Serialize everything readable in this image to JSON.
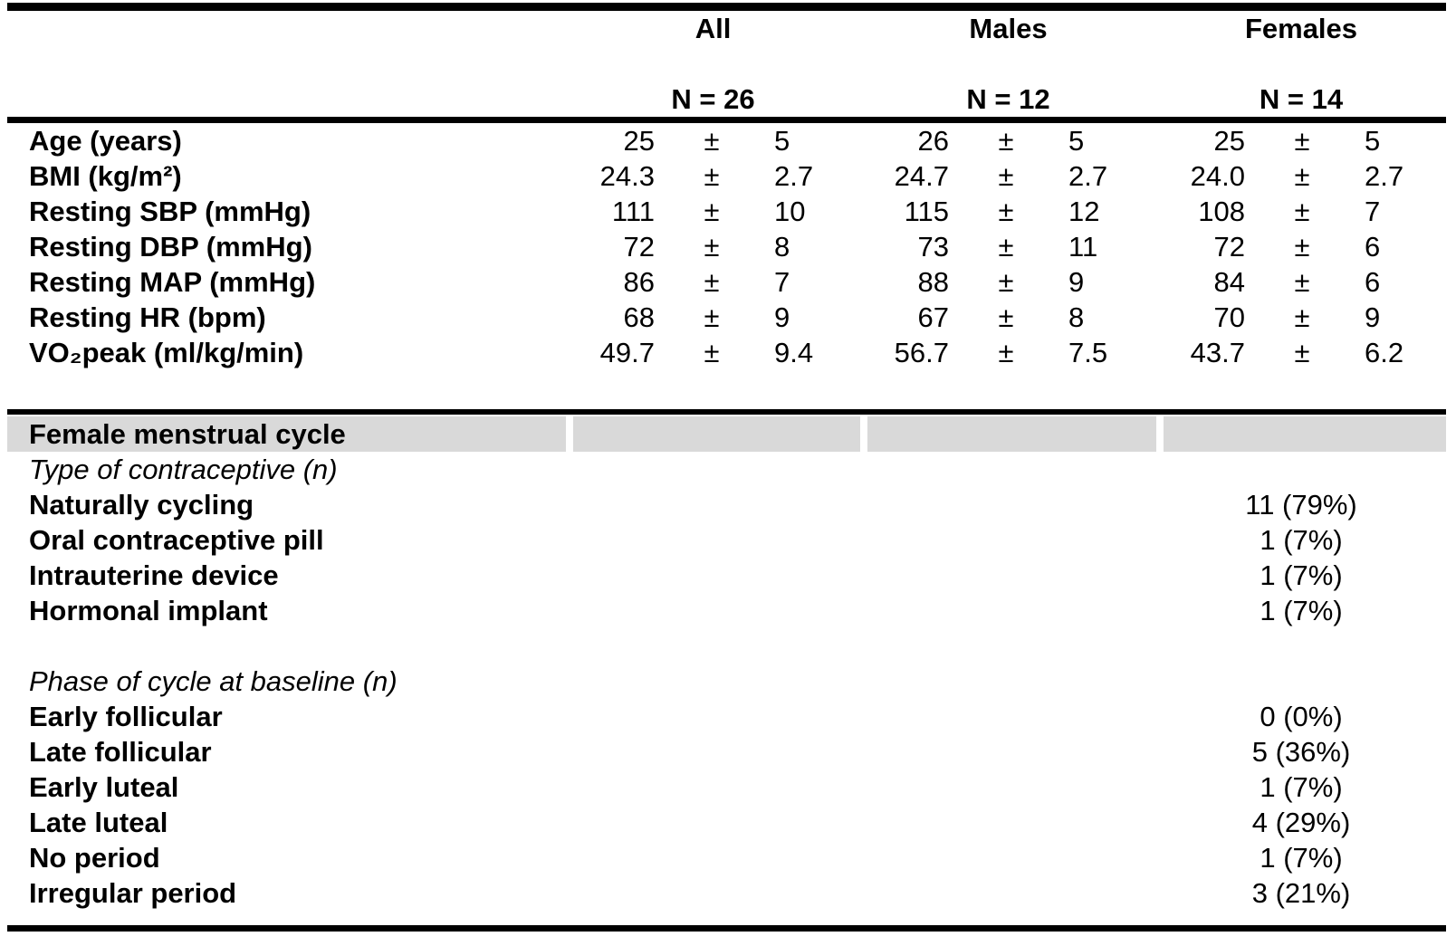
{
  "colors": {
    "text": "#000000",
    "rule": "#000000",
    "section_band": "#d9d9d9",
    "background": "#ffffff"
  },
  "table": {
    "pm": "±",
    "column_headers": [
      {
        "label": "All",
        "n_label": "N = 26"
      },
      {
        "label": "Males",
        "n_label": "N = 12"
      },
      {
        "label": "Females",
        "n_label": "N = 14"
      }
    ],
    "stat_rows": [
      {
        "label": "Age (years)",
        "cells": [
          {
            "mean": "25",
            "sd": "5"
          },
          {
            "mean": "26",
            "sd": "5"
          },
          {
            "mean": "25",
            "sd": "5"
          }
        ]
      },
      {
        "label": "BMI (kg/m²)",
        "cells": [
          {
            "mean": "24.3",
            "sd": "2.7"
          },
          {
            "mean": "24.7",
            "sd": "2.7"
          },
          {
            "mean": "24.0",
            "sd": "2.7"
          }
        ]
      },
      {
        "label": "Resting SBP (mmHg)",
        "cells": [
          {
            "mean": "111",
            "sd": "10"
          },
          {
            "mean": "115",
            "sd": "12"
          },
          {
            "mean": "108",
            "sd": "7"
          }
        ]
      },
      {
        "label": "Resting DBP (mmHg)",
        "cells": [
          {
            "mean": "72",
            "sd": "8"
          },
          {
            "mean": "73",
            "sd": "11"
          },
          {
            "mean": "72",
            "sd": "6"
          }
        ]
      },
      {
        "label": "Resting MAP (mmHg)",
        "cells": [
          {
            "mean": "86",
            "sd": "7"
          },
          {
            "mean": "88",
            "sd": "9"
          },
          {
            "mean": "84",
            "sd": "6"
          }
        ]
      },
      {
        "label": "Resting HR (bpm)",
        "cells": [
          {
            "mean": "68",
            "sd": "9"
          },
          {
            "mean": "67",
            "sd": "8"
          },
          {
            "mean": "70",
            "sd": "9"
          }
        ]
      },
      {
        "label": "VO₂peak (ml/kg/min)",
        "cells": [
          {
            "mean": "49.7",
            "sd": "9.4"
          },
          {
            "mean": "56.7",
            "sd": "7.5"
          },
          {
            "mean": "43.7",
            "sd": "6.2"
          }
        ]
      }
    ],
    "menstrual_section": {
      "header": "Female menstrual cycle",
      "contraceptive": {
        "subheader": "Type of contraceptive (n)",
        "rows": [
          {
            "label": "Naturally cycling",
            "value": "11 (79%)"
          },
          {
            "label": "Oral contraceptive pill",
            "value": "1 (7%)"
          },
          {
            "label": "Intrauterine device",
            "value": "1 (7%)"
          },
          {
            "label": "Hormonal implant",
            "value": "1 (7%)"
          }
        ]
      },
      "phase": {
        "subheader": "Phase of cycle at baseline (n)",
        "rows": [
          {
            "label": "Early follicular",
            "value": "0 (0%)"
          },
          {
            "label": "Late follicular",
            "value": "5 (36%)"
          },
          {
            "label": "Early luteal",
            "value": "1 (7%)"
          },
          {
            "label": "Late luteal",
            "value": "4 (29%)"
          },
          {
            "label": "No period",
            "value": "1 (7%)"
          },
          {
            "label": "Irregular period",
            "value": "3 (21%)"
          }
        ]
      }
    }
  }
}
